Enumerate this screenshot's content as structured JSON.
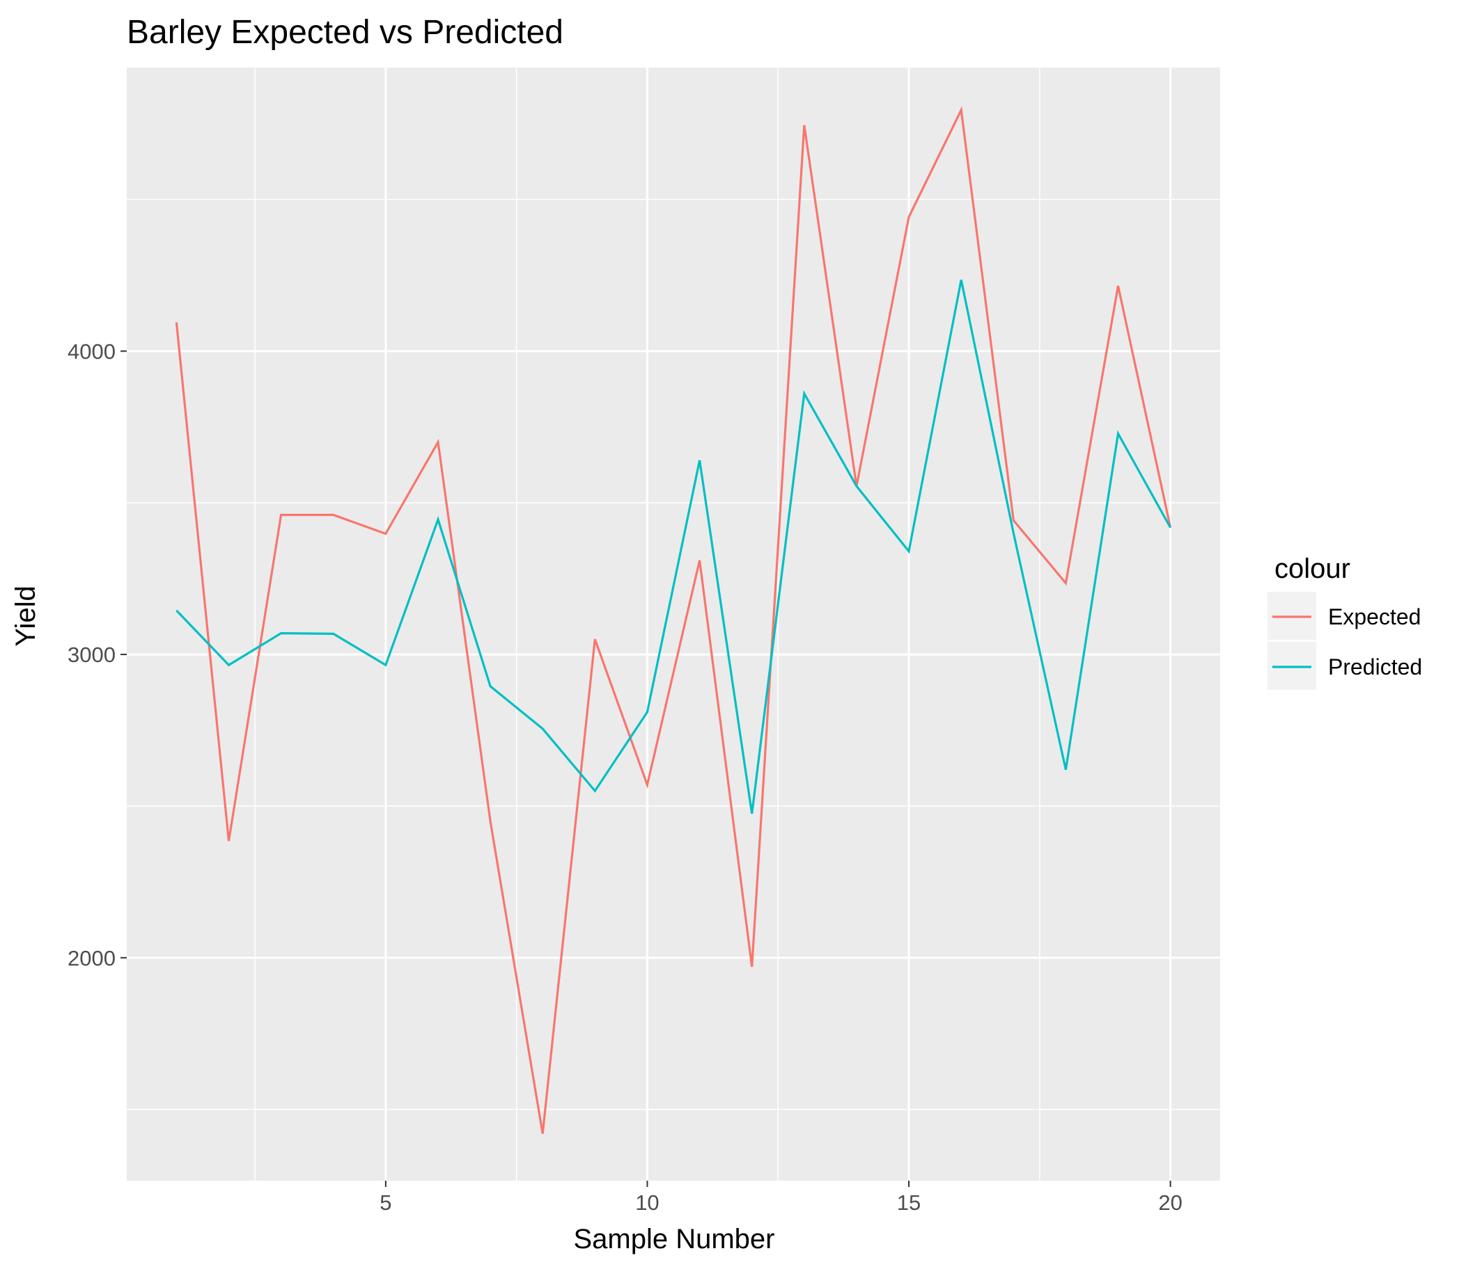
{
  "chart_data": {
    "type": "line",
    "title": "Barley Expected vs Predicted",
    "xlabel": "Sample Number",
    "ylabel": "Yield",
    "x": [
      1,
      2,
      3,
      4,
      5,
      6,
      7,
      8,
      9,
      10,
      11,
      12,
      13,
      14,
      15,
      16,
      17,
      18,
      19,
      20
    ],
    "xlim": [
      0.05,
      20.95
    ],
    "ylim": [
      1265,
      4935
    ],
    "xticks": [
      5,
      10,
      15,
      20
    ],
    "xtick_labels": [
      "5",
      "10",
      "15",
      "20"
    ],
    "yticks": [
      2000,
      3000,
      4000
    ],
    "ytick_labels": [
      "2000",
      "3000",
      "4000"
    ],
    "grid": true,
    "legend": {
      "title": "colour",
      "position": "right"
    },
    "series": [
      {
        "name": "Expected",
        "color": "#F8766D",
        "values": [
          4095,
          2385,
          3460,
          3460,
          3398,
          3700,
          2450,
          1420,
          3050,
          2570,
          3310,
          1970,
          4745,
          3555,
          4442,
          4795,
          3442,
          3235,
          4215,
          3418
        ]
      },
      {
        "name": "Predicted",
        "color": "#00BFC4",
        "values": [
          3145,
          2965,
          3070,
          3068,
          2965,
          3445,
          2895,
          2755,
          2550,
          2810,
          3640,
          2475,
          3860,
          3555,
          3340,
          4235,
          3400,
          2620,
          3728,
          3418
        ]
      }
    ]
  }
}
